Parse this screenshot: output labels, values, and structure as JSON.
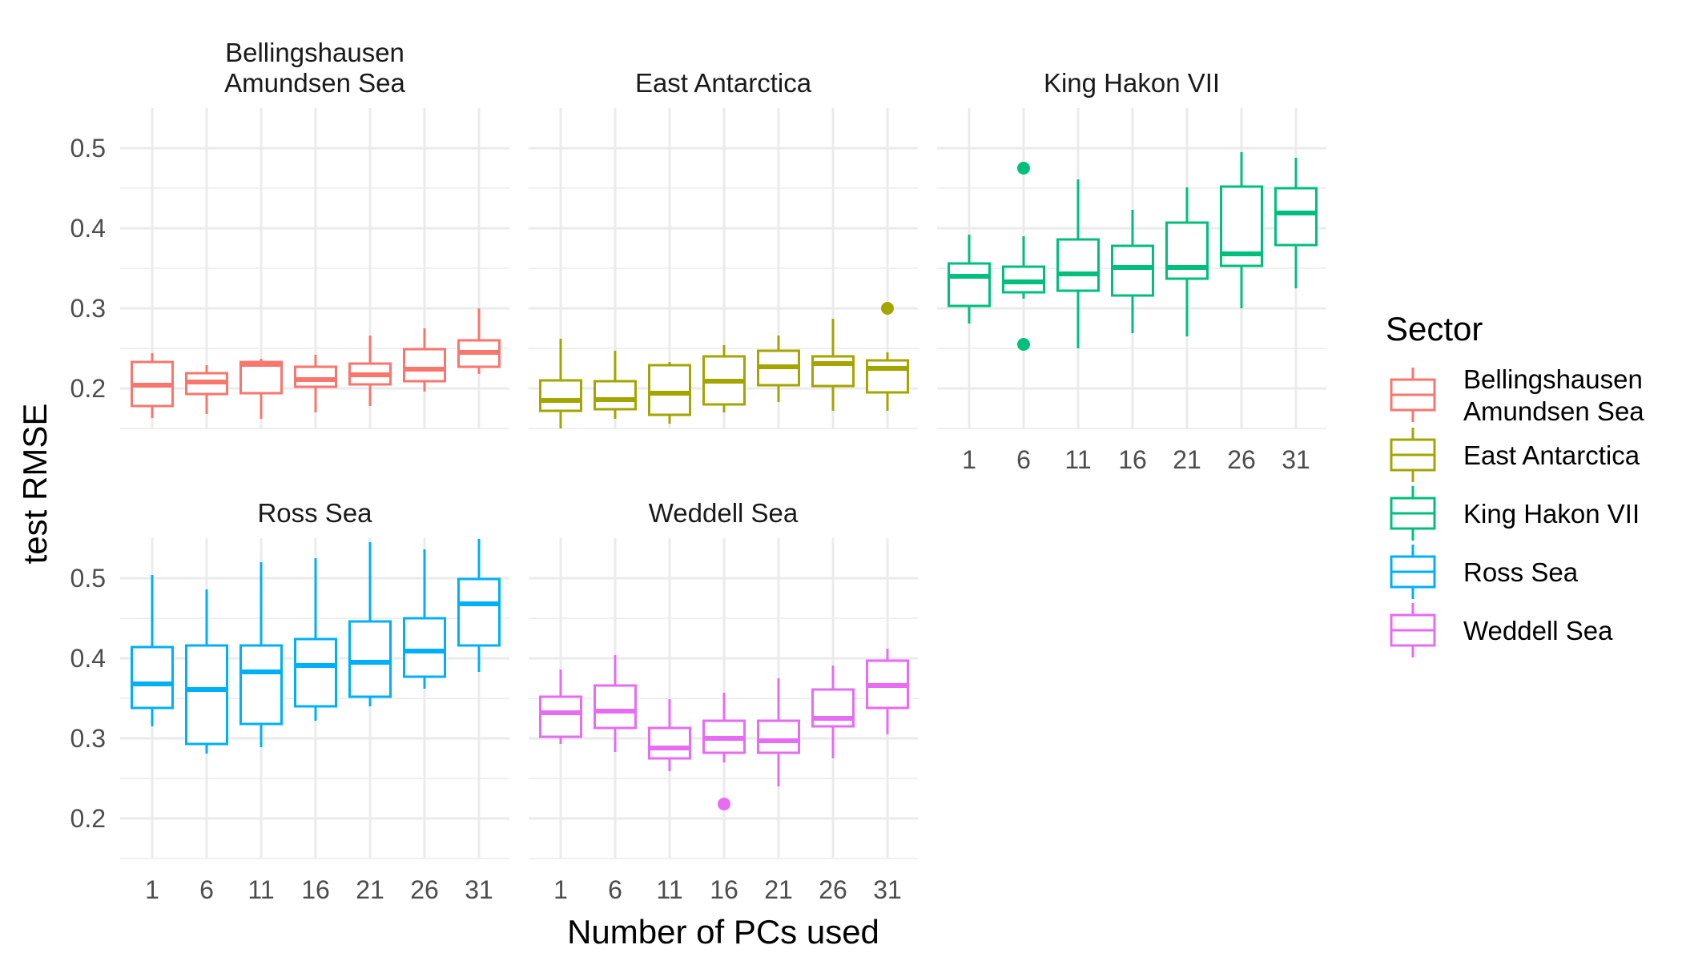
{
  "chart_data": {
    "type": "box",
    "xlabel": "Number of PCs used",
    "ylabel": "test RMSE",
    "x_ticks": [
      "1",
      "6",
      "11",
      "16",
      "21",
      "26",
      "31"
    ],
    "y_ticks": [
      0.2,
      0.3,
      0.4,
      0.5
    ],
    "y_tick_labels": [
      "0.2",
      "0.3",
      "0.4",
      "0.5"
    ],
    "ylim": [
      0.15,
      0.55
    ],
    "grid": true,
    "legend": {
      "title": "Sector",
      "position": "right",
      "items": [
        {
          "lines": [
            "Bellingshausen",
            "Amundsen Sea"
          ],
          "color": "#F8766D"
        },
        {
          "lines": [
            "East Antarctica"
          ],
          "color": "#A3A500"
        },
        {
          "lines": [
            "King Hakon VII"
          ],
          "color": "#00BF7D"
        },
        {
          "lines": [
            "Ross Sea"
          ],
          "color": "#00B0F6"
        },
        {
          "lines": [
            "Weddell Sea"
          ],
          "color": "#E76BF3"
        }
      ]
    },
    "panels": [
      {
        "name": "Bellingshausen Amundsen Sea",
        "title_lines": [
          "Bellingshausen",
          "Amundsen Sea"
        ],
        "color": "#F8766D",
        "boxes": [
          {
            "x": "1",
            "min": 0.163,
            "q1": 0.178,
            "median": 0.204,
            "q3": 0.233,
            "max": 0.244,
            "outliers": []
          },
          {
            "x": "6",
            "min": 0.168,
            "q1": 0.193,
            "median": 0.208,
            "q3": 0.219,
            "max": 0.229,
            "outliers": []
          },
          {
            "x": "11",
            "min": 0.162,
            "q1": 0.194,
            "median": 0.23,
            "q3": 0.233,
            "max": 0.237,
            "outliers": []
          },
          {
            "x": "16",
            "min": 0.17,
            "q1": 0.202,
            "median": 0.211,
            "q3": 0.227,
            "max": 0.242,
            "outliers": []
          },
          {
            "x": "21",
            "min": 0.178,
            "q1": 0.205,
            "median": 0.217,
            "q3": 0.231,
            "max": 0.266,
            "outliers": []
          },
          {
            "x": "26",
            "min": 0.196,
            "q1": 0.209,
            "median": 0.224,
            "q3": 0.249,
            "max": 0.275,
            "outliers": []
          },
          {
            "x": "31",
            "min": 0.218,
            "q1": 0.227,
            "median": 0.245,
            "q3": 0.26,
            "max": 0.3,
            "outliers": []
          }
        ]
      },
      {
        "name": "East Antarctica",
        "title_lines": [
          "East Antarctica"
        ],
        "color": "#A3A500",
        "boxes": [
          {
            "x": "1",
            "min": 0.15,
            "q1": 0.172,
            "median": 0.185,
            "q3": 0.21,
            "max": 0.262,
            "outliers": []
          },
          {
            "x": "6",
            "min": 0.162,
            "q1": 0.174,
            "median": 0.186,
            "q3": 0.209,
            "max": 0.247,
            "outliers": []
          },
          {
            "x": "11",
            "min": 0.156,
            "q1": 0.167,
            "median": 0.194,
            "q3": 0.229,
            "max": 0.233,
            "outliers": []
          },
          {
            "x": "16",
            "min": 0.17,
            "q1": 0.18,
            "median": 0.209,
            "q3": 0.24,
            "max": 0.254,
            "outliers": []
          },
          {
            "x": "21",
            "min": 0.183,
            "q1": 0.204,
            "median": 0.227,
            "q3": 0.247,
            "max": 0.266,
            "outliers": []
          },
          {
            "x": "26",
            "min": 0.172,
            "q1": 0.203,
            "median": 0.231,
            "q3": 0.24,
            "max": 0.287,
            "outliers": []
          },
          {
            "x": "31",
            "min": 0.172,
            "q1": 0.195,
            "median": 0.225,
            "q3": 0.235,
            "max": 0.245,
            "outliers": [
              0.3
            ]
          }
        ]
      },
      {
        "name": "King Hakon VII",
        "title_lines": [
          "King Hakon VII"
        ],
        "color": "#00BF7D",
        "boxes": [
          {
            "x": "1",
            "min": 0.281,
            "q1": 0.303,
            "median": 0.34,
            "q3": 0.356,
            "max": 0.392,
            "outliers": []
          },
          {
            "x": "6",
            "min": 0.312,
            "q1": 0.32,
            "median": 0.333,
            "q3": 0.352,
            "max": 0.39,
            "outliers": [
              0.475,
              0.255
            ]
          },
          {
            "x": "11",
            "min": 0.25,
            "q1": 0.322,
            "median": 0.343,
            "q3": 0.386,
            "max": 0.461,
            "outliers": []
          },
          {
            "x": "16",
            "min": 0.269,
            "q1": 0.316,
            "median": 0.351,
            "q3": 0.378,
            "max": 0.423,
            "outliers": []
          },
          {
            "x": "21",
            "min": 0.265,
            "q1": 0.337,
            "median": 0.351,
            "q3": 0.407,
            "max": 0.451,
            "outliers": []
          },
          {
            "x": "26",
            "min": 0.3,
            "q1": 0.353,
            "median": 0.368,
            "q3": 0.452,
            "max": 0.495,
            "outliers": []
          },
          {
            "x": "31",
            "min": 0.325,
            "q1": 0.379,
            "median": 0.419,
            "q3": 0.45,
            "max": 0.488,
            "outliers": []
          }
        ]
      },
      {
        "name": "Ross Sea",
        "title_lines": [
          "Ross Sea"
        ],
        "color": "#00B0F6",
        "boxes": [
          {
            "x": "1",
            "min": 0.315,
            "q1": 0.338,
            "median": 0.368,
            "q3": 0.414,
            "max": 0.504,
            "outliers": []
          },
          {
            "x": "6",
            "min": 0.281,
            "q1": 0.293,
            "median": 0.361,
            "q3": 0.416,
            "max": 0.486,
            "outliers": []
          },
          {
            "x": "11",
            "min": 0.289,
            "q1": 0.318,
            "median": 0.383,
            "q3": 0.416,
            "max": 0.52,
            "outliers": []
          },
          {
            "x": "16",
            "min": 0.322,
            "q1": 0.34,
            "median": 0.391,
            "q3": 0.424,
            "max": 0.525,
            "outliers": []
          },
          {
            "x": "21",
            "min": 0.34,
            "q1": 0.352,
            "median": 0.395,
            "q3": 0.446,
            "max": 0.545,
            "outliers": []
          },
          {
            "x": "26",
            "min": 0.362,
            "q1": 0.377,
            "median": 0.409,
            "q3": 0.45,
            "max": 0.536,
            "outliers": []
          },
          {
            "x": "31",
            "min": 0.383,
            "q1": 0.416,
            "median": 0.468,
            "q3": 0.499,
            "max": 0.549,
            "outliers": []
          }
        ]
      },
      {
        "name": "Weddell Sea",
        "title_lines": [
          "Weddell Sea"
        ],
        "color": "#E76BF3",
        "boxes": [
          {
            "x": "1",
            "min": 0.293,
            "q1": 0.302,
            "median": 0.332,
            "q3": 0.352,
            "max": 0.386,
            "outliers": []
          },
          {
            "x": "6",
            "min": 0.283,
            "q1": 0.313,
            "median": 0.334,
            "q3": 0.366,
            "max": 0.404,
            "outliers": []
          },
          {
            "x": "11",
            "min": 0.259,
            "q1": 0.275,
            "median": 0.288,
            "q3": 0.313,
            "max": 0.349,
            "outliers": []
          },
          {
            "x": "16",
            "min": 0.27,
            "q1": 0.282,
            "median": 0.3,
            "q3": 0.322,
            "max": 0.357,
            "outliers": [
              0.218
            ]
          },
          {
            "x": "21",
            "min": 0.24,
            "q1": 0.282,
            "median": 0.297,
            "q3": 0.322,
            "max": 0.375,
            "outliers": []
          },
          {
            "x": "26",
            "min": 0.275,
            "q1": 0.315,
            "median": 0.325,
            "q3": 0.361,
            "max": 0.391,
            "outliers": []
          },
          {
            "x": "31",
            "min": 0.305,
            "q1": 0.338,
            "median": 0.366,
            "q3": 0.397,
            "max": 0.412,
            "outliers": []
          }
        ]
      }
    ]
  }
}
